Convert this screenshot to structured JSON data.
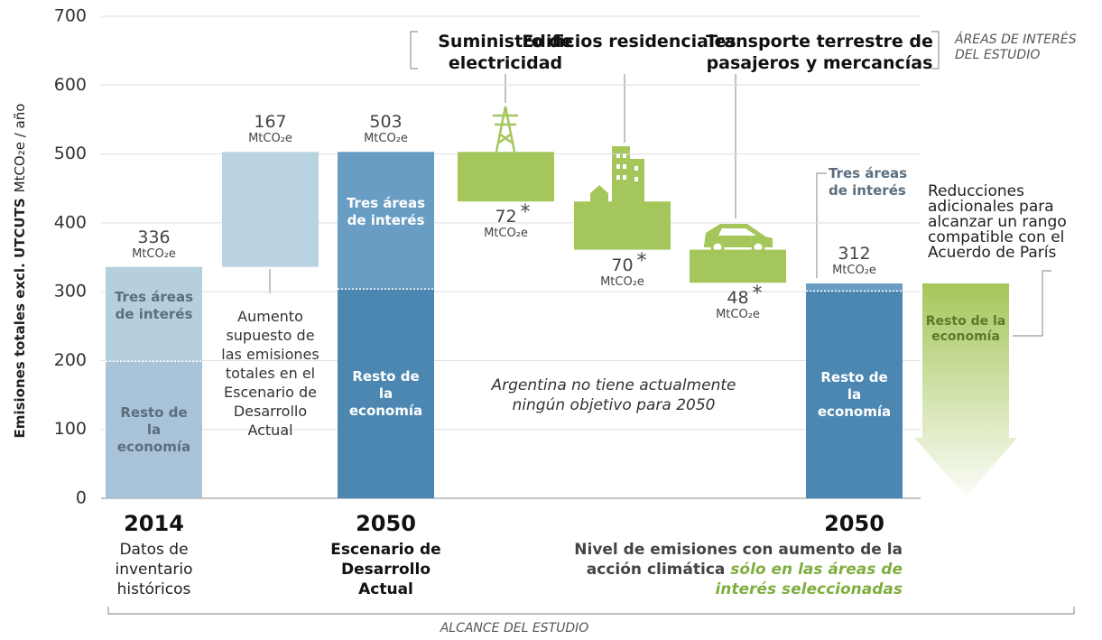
{
  "chart_data": {
    "type": "waterfall",
    "y_label": "Emisiones totales excl. UTCUTS",
    "y_unit_label": "MtCO₂e / año",
    "ylim": [
      0,
      700
    ],
    "yticks": [
      0,
      100,
      200,
      300,
      400,
      500,
      600,
      700
    ],
    "unit": "MtCO₂e",
    "note_mark": "*",
    "bars": [
      {
        "kind": "total",
        "value": 336,
        "year": "2014",
        "caption": "Datos de inventario históricos",
        "segments": [
          {
            "name": "Resto de la economía",
            "value": 199,
            "color": "#a9c4d8",
            "text_color": "#5a6e7e"
          },
          {
            "name": "Tres áreas de interés",
            "value": 137,
            "color": "#b6cfdf",
            "text_color": "#5a6e7e"
          }
        ]
      },
      {
        "kind": "increase",
        "value": 167,
        "color": "#b9d3e0",
        "note": "Aumento supuesto de las emisiones totales en el Escenario de Desarrollo Actual"
      },
      {
        "kind": "total",
        "value": 503,
        "year": "2050",
        "caption": "Escenario de Desarrollo Actual",
        "segments": [
          {
            "name": "Resto de la economía",
            "value": 304,
            "color": "#4b87b1",
            "text_color": "#ffffff"
          },
          {
            "name": "Tres áreas de interés",
            "value": 199,
            "color": "#6a9dc3",
            "text_color": "#ffffff"
          }
        ]
      },
      {
        "kind": "decrease",
        "value": 72,
        "color": "#a5c65b",
        "heading": "Suministro de electricidad"
      },
      {
        "kind": "decrease",
        "value": 70,
        "color": "#a5c65b",
        "heading": "Edificios residenciales"
      },
      {
        "kind": "decrease",
        "value": 48,
        "color": "#a5c65b",
        "heading": "Transporte terrestre de pasajeros y mercancías"
      },
      {
        "kind": "total",
        "value": 312,
        "year": "2050",
        "caption": "Nivel de emisiones con aumento de la acción climática",
        "caption_highlight": "sólo en las áreas de interés seleccionadas",
        "segments": [
          {
            "name": "Resto de la economía",
            "value": 301,
            "color": "#4b87b1",
            "text_color": "#ffffff"
          },
          {
            "name": "Tres áreas de interés",
            "value": 11,
            "color": "#6a9dc3",
            "text_color": "#5a6e7e"
          }
        ]
      }
    ],
    "focus_label": "ÁREAS DE INTERÉS DEL ESTUDIO",
    "scope_label": "ALCANCE DEL ESTUDIO",
    "annotation": "Argentina no tiene actualmente ningún objetivo para 2050",
    "paris": {
      "text": "Reducciones adicionales para alcanzar un rango compatible con el Acuerdo de París",
      "label": "Resto de la economía",
      "color": "#a5c65b"
    }
  }
}
